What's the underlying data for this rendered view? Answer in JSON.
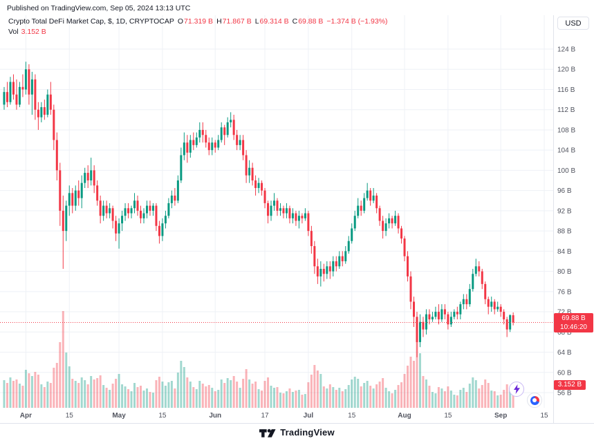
{
  "header": {
    "published": "Published on TradingView.com, Sep 05, 2024 13:13 UTC"
  },
  "legend": {
    "title": "Crypto Total DeFi Market Cap, $, 1D, CRYPTOCAP",
    "open_label": "O",
    "open": "71.319 B",
    "high_label": "H",
    "high": "71.867 B",
    "low_label": "L",
    "low": "69.314 B",
    "close_label": "C",
    "close": "69.88 B",
    "change": "−1.374 B (−1.93%)",
    "vol_label": "Vol",
    "vol": "3.152 B"
  },
  "price_scale": {
    "currency": "USD",
    "min": 56,
    "max": 124,
    "step": 4,
    "suffix": " B"
  },
  "badges": {
    "price": "69.88 B",
    "countdown": "10:46:20",
    "volume": "3.152 B"
  },
  "time_axis": [
    {
      "label": "Apr",
      "bar": 7
    },
    {
      "label": "15",
      "bar": 21
    },
    {
      "label": "May",
      "bar": 37
    },
    {
      "label": "15",
      "bar": 51
    },
    {
      "label": "Jun",
      "bar": 68
    },
    {
      "label": "17",
      "bar": 84
    },
    {
      "label": "Jul",
      "bar": 98
    },
    {
      "label": "15",
      "bar": 112
    },
    {
      "label": "Aug",
      "bar": 129
    },
    {
      "label": "15",
      "bar": 143
    },
    {
      "label": "Sep",
      "bar": 160
    },
    {
      "label": "15",
      "bar": 174
    }
  ],
  "footer": {
    "brand": "TradingView"
  },
  "icons": {
    "fab1": "lightning-icon",
    "fab2": "pie-chart-icon",
    "logo": "tradingview-logo"
  },
  "colors": {
    "up": "#089981",
    "down": "#F23645",
    "vol_up": "rgba(8,153,129,0.38)",
    "vol_down": "rgba(242,54,69,0.38)",
    "grid": "#eef1f6",
    "axis_text": "#50535e",
    "border": "#e0e3eb",
    "badge_bg": "#F23645",
    "badge_text": "#ffffff",
    "text": "#131722",
    "accent_red": "#F23645"
  },
  "chart_data": {
    "type": "candlestick",
    "title": "Crypto Total DeFi Market Cap",
    "symbol": "CRYPTOCAP",
    "interval": "1D",
    "currency": "USD",
    "unit": "billions USD",
    "ylim": [
      56,
      124
    ],
    "ytick_step": 4,
    "y_suffix": " B",
    "right_offset_bars": 11,
    "legend_position": "top-left",
    "grid": true,
    "current": {
      "open": 71.319,
      "high": 71.867,
      "low": 69.314,
      "close": 69.88,
      "change": -1.374,
      "change_pct": -1.93,
      "volume": 3.152,
      "countdown": "10:46:20"
    },
    "columns": [
      "open",
      "high",
      "low",
      "close",
      "volume"
    ],
    "candles": [
      [
        113,
        116.5,
        112,
        115.5,
        4
      ],
      [
        115.5,
        117.5,
        112.5,
        113.5,
        3.6
      ],
      [
        113.5,
        118.5,
        113,
        117.5,
        4.4
      ],
      [
        117.5,
        119,
        114,
        115,
        3.9
      ],
      [
        115,
        118,
        112,
        113,
        4.1
      ],
      [
        113,
        117.5,
        112.5,
        116.5,
        3.5
      ],
      [
        116.5,
        119,
        114.5,
        116,
        3.2
      ],
      [
        116,
        121.5,
        115,
        120,
        5.5
      ],
      [
        120,
        121,
        113,
        115,
        5
      ],
      [
        115,
        119.5,
        111,
        118,
        4.6
      ],
      [
        118,
        119,
        110,
        112,
        5.2
      ],
      [
        112,
        113.5,
        108,
        110.5,
        4.8
      ],
      [
        110.5,
        113.5,
        109.5,
        112.5,
        3.4
      ],
      [
        112.5,
        114,
        110,
        111,
        3
      ],
      [
        111,
        116,
        110.5,
        115,
        3.8
      ],
      [
        115,
        117.5,
        111,
        112,
        3.6
      ],
      [
        112,
        113,
        104,
        106,
        5.8
      ],
      [
        106,
        107.5,
        98,
        100,
        6.5
      ],
      [
        100,
        101.5,
        89,
        92,
        9.5
      ],
      [
        92,
        95,
        80.5,
        88,
        14
      ],
      [
        88,
        94,
        86,
        93,
        8
      ],
      [
        93,
        97,
        91,
        95.5,
        6
      ],
      [
        95.5,
        96.5,
        91.5,
        93,
        4.2
      ],
      [
        93,
        97,
        92,
        96,
        3.9
      ],
      [
        96,
        98,
        93,
        94.5,
        3.6
      ],
      [
        94.5,
        99,
        92.5,
        97.5,
        4.4
      ],
      [
        97.5,
        100.5,
        96.5,
        99.5,
        4
      ],
      [
        99.5,
        101,
        96.5,
        98,
        3.4
      ],
      [
        98,
        102.5,
        97,
        100,
        4.6
      ],
      [
        100,
        101,
        95.5,
        97,
        4.1
      ],
      [
        97,
        98,
        93,
        94,
        4.3
      ],
      [
        94,
        95,
        89.5,
        91,
        4.7
      ],
      [
        91,
        94,
        90,
        93,
        3.3
      ],
      [
        93,
        94,
        90.5,
        91.5,
        2.9
      ],
      [
        91.5,
        93.5,
        90.5,
        92.5,
        2.6
      ],
      [
        92.5,
        93,
        88.5,
        90,
        3.5
      ],
      [
        90,
        91,
        86,
        87.5,
        4.2
      ],
      [
        87.5,
        90.5,
        84.5,
        89.5,
        4.9
      ],
      [
        89.5,
        92,
        88,
        91,
        3.4
      ],
      [
        91,
        93.5,
        90,
        92.5,
        3.1
      ],
      [
        92.5,
        93.5,
        90.5,
        91.5,
        2.7
      ],
      [
        91.5,
        93,
        90.5,
        92.5,
        2.4
      ],
      [
        92.5,
        95.5,
        91.5,
        94,
        3.6
      ],
      [
        94,
        95,
        91,
        92,
        3
      ],
      [
        92,
        93,
        89.5,
        90.5,
        3.2
      ],
      [
        90.5,
        92.5,
        89.5,
        91.5,
        2.5
      ],
      [
        91.5,
        94,
        90.5,
        93,
        2.8
      ],
      [
        93,
        94,
        91,
        92,
        2.3
      ],
      [
        92,
        93.5,
        91,
        93,
        2.2
      ],
      [
        93,
        93.5,
        88,
        89,
        4
      ],
      [
        89,
        90,
        85.5,
        87,
        4.5
      ],
      [
        87,
        90.5,
        86,
        89.5,
        3.8
      ],
      [
        89.5,
        92,
        88.5,
        91,
        3.2
      ],
      [
        91,
        94.5,
        90.5,
        93.5,
        3.7
      ],
      [
        93.5,
        96,
        92.5,
        95,
        3.9
      ],
      [
        95,
        96.5,
        93,
        94,
        2.8
      ],
      [
        94,
        99,
        93.5,
        98,
        5.1
      ],
      [
        98,
        104.5,
        97.5,
        103,
        6.8
      ],
      [
        103,
        107.5,
        102,
        105.5,
        5.9
      ],
      [
        105.5,
        107,
        101.5,
        103.5,
        4.4
      ],
      [
        103.5,
        107,
        102.5,
        106,
        3.8
      ],
      [
        106,
        107.5,
        104,
        105,
        3
      ],
      [
        105,
        107.5,
        104.5,
        106.5,
        2.7
      ],
      [
        106.5,
        109.5,
        105.5,
        108,
        3.9
      ],
      [
        108,
        109.5,
        105.5,
        107,
        3.5
      ],
      [
        107,
        108,
        104.5,
        105.5,
        3.1
      ],
      [
        105.5,
        106.5,
        103,
        104,
        3.3
      ],
      [
        104,
        106.5,
        103,
        105.5,
        2.9
      ],
      [
        105.5,
        106,
        103.5,
        104.5,
        2.4
      ],
      [
        104.5,
        107,
        104,
        106,
        2.6
      ],
      [
        106,
        109.5,
        105.5,
        108.5,
        4.1
      ],
      [
        108.5,
        109,
        105,
        107,
        3.6
      ],
      [
        107,
        110.5,
        106.5,
        109.5,
        4.3
      ],
      [
        109.5,
        111.5,
        108.5,
        110,
        4
      ],
      [
        110,
        111,
        106,
        107,
        4.6
      ],
      [
        107,
        108,
        104,
        105,
        3.8
      ],
      [
        105,
        107,
        104,
        106,
        2.9
      ],
      [
        106,
        107,
        102,
        103,
        4.2
      ],
      [
        103,
        104,
        97.5,
        99,
        5.6
      ],
      [
        99,
        102,
        97.5,
        100.5,
        4.1
      ],
      [
        100.5,
        101.5,
        97,
        98,
        3.5
      ],
      [
        98,
        99,
        95,
        96.5,
        3.8
      ],
      [
        96.5,
        98.5,
        95.5,
        97.5,
        2.7
      ],
      [
        97.5,
        98,
        95,
        96,
        2.5
      ],
      [
        96,
        96.5,
        92.5,
        93.5,
        3.9
      ],
      [
        93.5,
        94,
        89.5,
        91,
        4.4
      ],
      [
        91,
        94,
        90,
        93,
        3.2
      ],
      [
        93,
        95.5,
        92,
        94,
        2.9
      ],
      [
        94,
        94.5,
        91,
        92,
        3
      ],
      [
        92,
        93.5,
        91,
        92.5,
        2.2
      ],
      [
        92.5,
        93,
        90.5,
        91.5,
        2.1
      ],
      [
        91.5,
        93.5,
        90.5,
        92.5,
        2.4
      ],
      [
        92.5,
        93,
        89.5,
        90.5,
        2.8
      ],
      [
        90.5,
        92.5,
        89.5,
        91.5,
        2.3
      ],
      [
        91.5,
        92,
        89,
        90,
        2.5
      ],
      [
        90,
        92,
        88.5,
        91,
        2.6
      ],
      [
        91,
        91.5,
        89.5,
        90.5,
        1.9
      ],
      [
        90.5,
        92.5,
        90,
        91.5,
        2
      ],
      [
        91.5,
        92,
        87,
        88,
        3.7
      ],
      [
        88,
        89,
        83.5,
        85,
        4.8
      ],
      [
        85,
        86,
        79.5,
        81,
        6.2
      ],
      [
        81,
        82.5,
        77.5,
        79,
        5.4
      ],
      [
        79,
        82,
        77,
        80.5,
        4.9
      ],
      [
        80.5,
        81.5,
        78,
        79.5,
        3.1
      ],
      [
        79.5,
        82,
        78.5,
        81,
        2.8
      ],
      [
        81,
        82,
        78.5,
        80,
        3.4
      ],
      [
        80,
        83,
        79,
        82,
        3
      ],
      [
        82,
        83,
        80,
        81,
        2.6
      ],
      [
        81,
        84,
        80.5,
        83,
        2.9
      ],
      [
        83,
        84,
        81,
        82,
        2.4
      ],
      [
        82,
        85,
        81.5,
        84,
        2.7
      ],
      [
        84,
        87,
        83.5,
        86,
        3.3
      ],
      [
        86,
        89.5,
        85.5,
        88.5,
        4.1
      ],
      [
        88.5,
        92,
        88,
        91,
        4.5
      ],
      [
        91,
        94.5,
        90.5,
        93,
        4.2
      ],
      [
        93,
        94,
        91,
        92,
        3.1
      ],
      [
        92,
        95.5,
        91.5,
        94.5,
        3.6
      ],
      [
        94.5,
        97.5,
        94,
        96,
        3.9
      ],
      [
        96,
        96.5,
        93,
        94,
        3.2
      ],
      [
        94,
        96.5,
        93.5,
        95,
        2.8
      ],
      [
        95,
        95.5,
        91.5,
        92.5,
        3.4
      ],
      [
        92.5,
        93,
        89,
        90,
        3.8
      ],
      [
        90,
        91,
        86.5,
        88,
        4.3
      ],
      [
        88,
        90.5,
        87,
        89.5,
        2.9
      ],
      [
        89.5,
        91.5,
        88.5,
        90.5,
        2.4
      ],
      [
        90.5,
        91,
        88.5,
        89.5,
        2.1
      ],
      [
        89.5,
        92,
        89,
        91,
        2.6
      ],
      [
        91,
        91.5,
        87.5,
        88.5,
        3.3
      ],
      [
        88.5,
        89,
        85.5,
        86.5,
        3.7
      ],
      [
        86.5,
        87,
        82,
        83,
        4.9
      ],
      [
        83,
        84,
        78,
        79,
        6.1
      ],
      [
        79,
        80,
        72.5,
        74,
        7.4
      ],
      [
        74,
        75,
        69,
        71,
        6.8
      ],
      [
        71,
        72,
        63,
        66,
        11.5
      ],
      [
        66,
        71.5,
        65,
        70,
        7.9
      ],
      [
        70,
        71,
        67,
        68.5,
        4.6
      ],
      [
        68.5,
        72.5,
        67.5,
        71.5,
        4.1
      ],
      [
        71.5,
        72.5,
        69.5,
        70.5,
        3.2
      ],
      [
        70.5,
        72,
        70,
        71,
        2.3
      ],
      [
        71,
        73,
        70.5,
        72,
        2.1
      ],
      [
        72,
        73.5,
        69.5,
        70.5,
        3
      ],
      [
        70.5,
        73.5,
        70,
        72.5,
        2.8
      ],
      [
        72.5,
        73.5,
        70.5,
        71.5,
        2.4
      ],
      [
        71.5,
        72,
        68.5,
        69.5,
        3.1
      ],
      [
        69.5,
        72,
        69,
        71,
        2.5
      ],
      [
        71,
        72.5,
        70.5,
        72,
        1.9
      ],
      [
        72,
        73,
        70.5,
        71.5,
        1.8
      ],
      [
        71.5,
        74,
        70.5,
        73.5,
        2.6
      ],
      [
        73.5,
        75.5,
        72.5,
        74.5,
        2.9
      ],
      [
        74.5,
        75.5,
        72.5,
        73.5,
        2.3
      ],
      [
        73.5,
        77.5,
        73,
        76.5,
        3.5
      ],
      [
        76.5,
        80.5,
        76,
        79.5,
        4.4
      ],
      [
        79.5,
        82.5,
        79,
        81,
        4
      ],
      [
        81,
        82,
        79,
        80,
        2.8
      ],
      [
        80,
        80.5,
        76.5,
        77.5,
        3.3
      ],
      [
        77.5,
        78,
        73.5,
        74.5,
        4.1
      ],
      [
        74.5,
        75,
        71.5,
        73,
        3.6
      ],
      [
        73,
        75,
        72,
        74,
        2.5
      ],
      [
        74,
        74.5,
        71.5,
        72.5,
        2.4
      ],
      [
        72.5,
        74,
        72,
        73,
        1.8
      ],
      [
        73,
        73.5,
        71,
        72,
        1.9
      ],
      [
        72,
        72.5,
        69.5,
        70.5,
        2.6
      ],
      [
        70.5,
        71,
        67,
        68.5,
        3.4
      ],
      [
        68.5,
        71.5,
        68,
        71.319,
        2.9
      ],
      [
        71.319,
        71.867,
        69.314,
        69.88,
        3.152
      ]
    ]
  }
}
